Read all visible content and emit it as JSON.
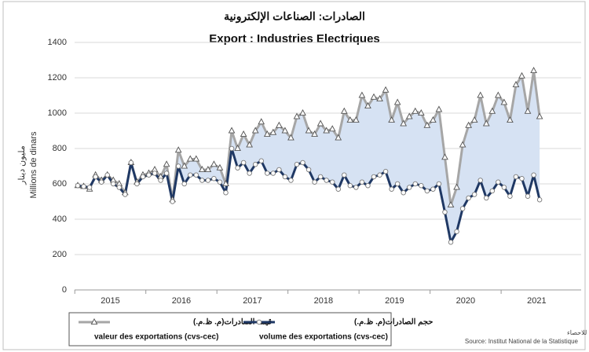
{
  "chart_data": {
    "type": "line",
    "title": "الصادرات:  الصناعات الإلكترونية",
    "subtitle": "Export :  Industries Electriques",
    "y_label": "Millions de dinars",
    "y_label_ar": "مليون دينار",
    "categories": [
      null,
      null,
      null,
      null,
      null,
      "2015",
      null,
      null,
      null,
      null,
      null,
      null,
      null,
      null,
      null,
      null,
      null,
      "2016",
      null,
      null,
      null,
      null,
      null,
      null,
      null,
      null,
      null,
      null,
      null,
      "2017",
      null,
      null,
      null,
      null,
      null,
      null,
      null,
      null,
      null,
      null,
      null,
      "2018",
      null,
      null,
      null,
      null,
      null,
      null,
      null,
      null,
      null,
      null,
      null,
      "2019",
      null,
      null,
      null,
      null,
      null,
      null,
      null,
      null,
      null,
      null,
      null,
      "2020",
      null,
      null,
      null,
      null,
      null,
      null,
      null,
      null,
      null,
      null,
      null,
      "2021",
      null
    ],
    "ylim": [
      0,
      1400
    ],
    "yticks": [
      0,
      200,
      400,
      600,
      800,
      1000,
      1200,
      1400
    ],
    "grid": true,
    "fill_between": "#d6e2f3",
    "series": [
      {
        "name": "valeur des exportations (cvs-cec)",
        "name_ar": "قيمة الصادرات(م. ظ.م.)",
        "color": "#a6a6a6",
        "marker": "triangle",
        "values": [
          590,
          585,
          570,
          650,
          620,
          650,
          620,
          600,
          550,
          720,
          610,
          650,
          660,
          680,
          640,
          710,
          510,
          790,
          700,
          740,
          740,
          680,
          680,
          710,
          690,
          600,
          900,
          800,
          880,
          820,
          900,
          950,
          880,
          890,
          930,
          900,
          860,
          980,
          1000,
          900,
          880,
          940,
          900,
          910,
          860,
          1010,
          960,
          960,
          1100,
          1040,
          1090,
          1080,
          1130,
          960,
          1060,
          940,
          980,
          1010,
          1000,
          930,
          960,
          1020,
          750,
          480,
          580,
          820,
          930,
          960,
          1100,
          940,
          1010,
          1100,
          1060,
          960,
          1160,
          1210,
          1010,
          1240,
          980
        ]
      },
      {
        "name": "volume des exportations (cvs-cec)",
        "name_ar": "حجم الصادرات(م. ظ.م.)",
        "color": "#1f3864",
        "marker": "circle",
        "values": [
          590,
          585,
          580,
          640,
          610,
          650,
          600,
          580,
          540,
          720,
          600,
          640,
          650,
          660,
          620,
          660,
          500,
          700,
          600,
          650,
          650,
          620,
          620,
          630,
          610,
          550,
          800,
          690,
          720,
          660,
          710,
          730,
          660,
          660,
          680,
          640,
          620,
          710,
          720,
          680,
          610,
          640,
          620,
          610,
          570,
          650,
          590,
          580,
          610,
          590,
          640,
          650,
          670,
          570,
          600,
          550,
          580,
          600,
          590,
          560,
          570,
          600,
          440,
          270,
          330,
          460,
          520,
          540,
          620,
          520,
          560,
          610,
          580,
          530,
          640,
          630,
          530,
          650,
          510
        ]
      }
    ],
    "source_ar": "المصدر : المعهد الوطني للاحصاء",
    "source": "Source: Institut National de la Statistique"
  }
}
